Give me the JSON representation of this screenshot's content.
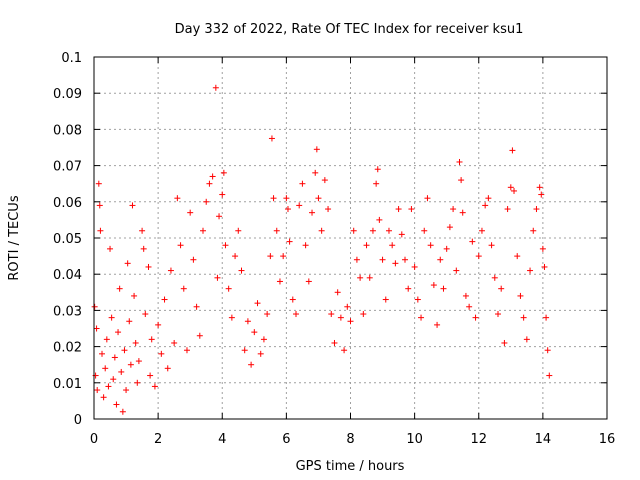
{
  "chart_data": {
    "type": "scatter",
    "title": "Day 332 of 2022, Rate Of TEC Index for receiver ksu1",
    "xlabel": "GPS time / hours",
    "ylabel": "ROTI / TECUs",
    "xlim": [
      0,
      16
    ],
    "ylim": [
      0,
      0.1
    ],
    "xticks": [
      0,
      2,
      4,
      6,
      8,
      10,
      12,
      14,
      16
    ],
    "xtick_labels": [
      "0",
      "2",
      "4",
      "6",
      "8",
      "10",
      "12",
      "14",
      "16"
    ],
    "yticks": [
      0,
      0.01,
      0.02,
      0.03,
      0.04,
      0.05,
      0.06,
      0.07,
      0.08,
      0.09,
      0.1
    ],
    "ytick_labels": [
      "0",
      "0.01",
      "0.02",
      "0.03",
      "0.04",
      "0.05",
      "0.06",
      "0.07",
      "0.08",
      "0.09",
      "0.1"
    ],
    "grid": true,
    "marker": "+",
    "color": "#ff0000",
    "series": [
      {
        "values": [
          [
            0.02,
            0.031
          ],
          [
            0.05,
            0.012
          ],
          [
            0.08,
            0.025
          ],
          [
            0.1,
            0.008
          ],
          [
            0.15,
            0.065
          ],
          [
            0.18,
            0.059
          ],
          [
            0.2,
            0.052
          ],
          [
            0.25,
            0.018
          ],
          [
            0.3,
            0.006
          ],
          [
            0.35,
            0.014
          ],
          [
            0.4,
            0.022
          ],
          [
            0.45,
            0.009
          ],
          [
            0.5,
            0.047
          ],
          [
            0.55,
            0.028
          ],
          [
            0.6,
            0.011
          ],
          [
            0.65,
            0.017
          ],
          [
            0.7,
            0.004
          ],
          [
            0.75,
            0.024
          ],
          [
            0.8,
            0.036
          ],
          [
            0.85,
            0.013
          ],
          [
            0.9,
            0.002
          ],
          [
            0.95,
            0.019
          ],
          [
            1.0,
            0.008
          ],
          [
            1.05,
            0.043
          ],
          [
            1.1,
            0.027
          ],
          [
            1.15,
            0.015
          ],
          [
            1.2,
            0.059
          ],
          [
            1.25,
            0.034
          ],
          [
            1.3,
            0.021
          ],
          [
            1.35,
            0.01
          ],
          [
            1.4,
            0.016
          ],
          [
            1.5,
            0.052
          ],
          [
            1.55,
            0.047
          ],
          [
            1.6,
            0.029
          ],
          [
            1.7,
            0.042
          ],
          [
            1.75,
            0.012
          ],
          [
            1.8,
            0.022
          ],
          [
            1.9,
            0.009
          ],
          [
            2.0,
            0.026
          ],
          [
            2.1,
            0.018
          ],
          [
            2.2,
            0.033
          ],
          [
            2.3,
            0.014
          ],
          [
            2.4,
            0.041
          ],
          [
            2.5,
            0.021
          ],
          [
            2.6,
            0.061
          ],
          [
            2.7,
            0.048
          ],
          [
            2.8,
            0.036
          ],
          [
            2.9,
            0.019
          ],
          [
            3.0,
            0.057
          ],
          [
            3.1,
            0.044
          ],
          [
            3.2,
            0.031
          ],
          [
            3.3,
            0.023
          ],
          [
            3.4,
            0.052
          ],
          [
            3.5,
            0.06
          ],
          [
            3.6,
            0.065
          ],
          [
            3.7,
            0.067
          ],
          [
            3.8,
            0.0915
          ],
          [
            3.85,
            0.039
          ],
          [
            3.9,
            0.056
          ],
          [
            4.0,
            0.062
          ],
          [
            4.05,
            0.068
          ],
          [
            4.1,
            0.048
          ],
          [
            4.2,
            0.036
          ],
          [
            4.3,
            0.028
          ],
          [
            4.4,
            0.045
          ],
          [
            4.5,
            0.052
          ],
          [
            4.6,
            0.041
          ],
          [
            4.7,
            0.019
          ],
          [
            4.8,
            0.027
          ],
          [
            4.9,
            0.015
          ],
          [
            5.0,
            0.024
          ],
          [
            5.1,
            0.032
          ],
          [
            5.2,
            0.018
          ],
          [
            5.3,
            0.022
          ],
          [
            5.4,
            0.029
          ],
          [
            5.5,
            0.045
          ],
          [
            5.55,
            0.0775
          ],
          [
            5.6,
            0.061
          ],
          [
            5.7,
            0.052
          ],
          [
            5.8,
            0.038
          ],
          [
            5.9,
            0.045
          ],
          [
            6.0,
            0.061
          ],
          [
            6.05,
            0.058
          ],
          [
            6.1,
            0.049
          ],
          [
            6.2,
            0.033
          ],
          [
            6.3,
            0.029
          ],
          [
            6.4,
            0.059
          ],
          [
            6.5,
            0.065
          ],
          [
            6.6,
            0.048
          ],
          [
            6.7,
            0.038
          ],
          [
            6.8,
            0.057
          ],
          [
            6.9,
            0.068
          ],
          [
            6.95,
            0.0745
          ],
          [
            7.0,
            0.061
          ],
          [
            7.1,
            0.052
          ],
          [
            7.2,
            0.066
          ],
          [
            7.3,
            0.058
          ],
          [
            7.4,
            0.029
          ],
          [
            7.5,
            0.021
          ],
          [
            7.6,
            0.035
          ],
          [
            7.7,
            0.028
          ],
          [
            7.8,
            0.019
          ],
          [
            7.9,
            0.031
          ],
          [
            8.0,
            0.027
          ],
          [
            8.1,
            0.052
          ],
          [
            8.2,
            0.044
          ],
          [
            8.3,
            0.039
          ],
          [
            8.4,
            0.029
          ],
          [
            8.5,
            0.048
          ],
          [
            8.6,
            0.039
          ],
          [
            8.7,
            0.052
          ],
          [
            8.8,
            0.065
          ],
          [
            8.85,
            0.069
          ],
          [
            8.9,
            0.055
          ],
          [
            9.0,
            0.044
          ],
          [
            9.1,
            0.033
          ],
          [
            9.2,
            0.052
          ],
          [
            9.3,
            0.048
          ],
          [
            9.4,
            0.043
          ],
          [
            9.5,
            0.058
          ],
          [
            9.6,
            0.051
          ],
          [
            9.7,
            0.044
          ],
          [
            9.8,
            0.036
          ],
          [
            9.9,
            0.058
          ],
          [
            10.0,
            0.042
          ],
          [
            10.1,
            0.033
          ],
          [
            10.2,
            0.028
          ],
          [
            10.3,
            0.052
          ],
          [
            10.4,
            0.061
          ],
          [
            10.5,
            0.048
          ],
          [
            10.6,
            0.037
          ],
          [
            10.7,
            0.026
          ],
          [
            10.8,
            0.044
          ],
          [
            10.9,
            0.036
          ],
          [
            11.0,
            0.047
          ],
          [
            11.1,
            0.053
          ],
          [
            11.2,
            0.058
          ],
          [
            11.3,
            0.041
          ],
          [
            11.4,
            0.071
          ],
          [
            11.45,
            0.066
          ],
          [
            11.5,
            0.057
          ],
          [
            11.6,
            0.034
          ],
          [
            11.7,
            0.031
          ],
          [
            11.8,
            0.049
          ],
          [
            11.9,
            0.028
          ],
          [
            12.0,
            0.045
          ],
          [
            12.1,
            0.052
          ],
          [
            12.2,
            0.059
          ],
          [
            12.3,
            0.061
          ],
          [
            12.4,
            0.048
          ],
          [
            12.5,
            0.039
          ],
          [
            12.6,
            0.029
          ],
          [
            12.7,
            0.036
          ],
          [
            12.8,
            0.021
          ],
          [
            12.9,
            0.058
          ],
          [
            13.0,
            0.064
          ],
          [
            13.05,
            0.0742
          ],
          [
            13.1,
            0.063
          ],
          [
            13.2,
            0.045
          ],
          [
            13.3,
            0.034
          ],
          [
            13.4,
            0.028
          ],
          [
            13.5,
            0.022
          ],
          [
            13.6,
            0.041
          ],
          [
            13.7,
            0.052
          ],
          [
            13.8,
            0.058
          ],
          [
            13.9,
            0.064
          ],
          [
            13.95,
            0.062
          ],
          [
            14.0,
            0.047
          ],
          [
            14.05,
            0.042
          ],
          [
            14.1,
            0.028
          ],
          [
            14.15,
            0.019
          ],
          [
            14.2,
            0.012
          ]
        ]
      }
    ]
  }
}
